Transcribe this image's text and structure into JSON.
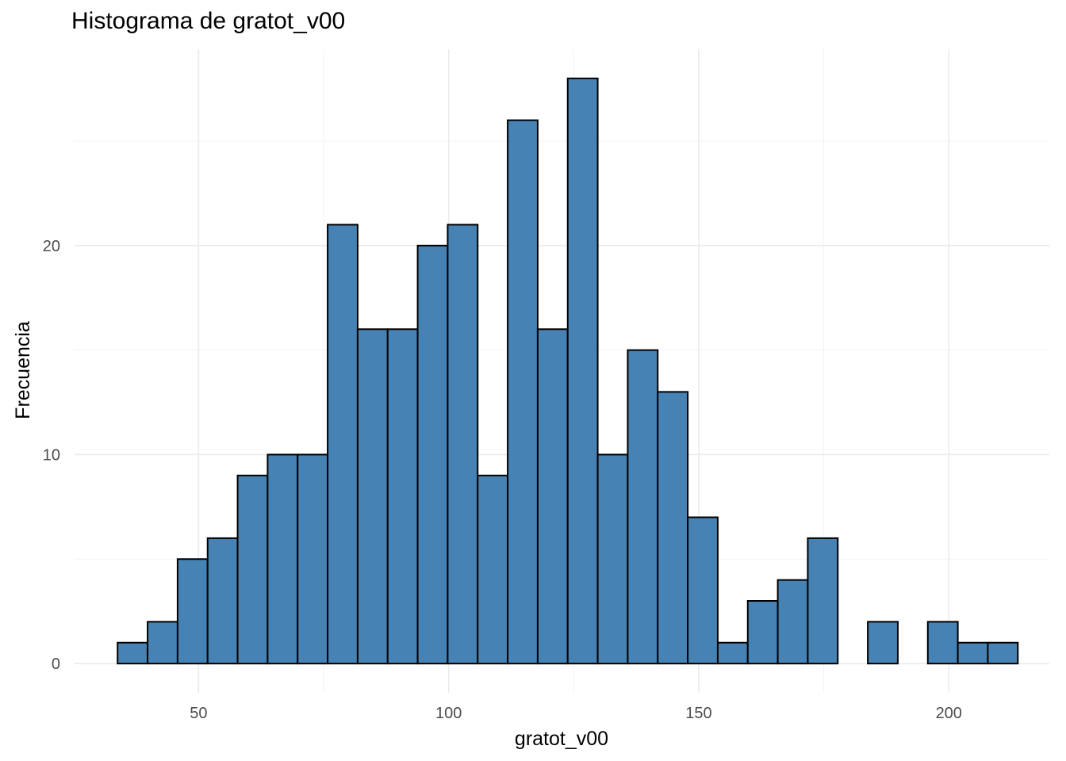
{
  "chart_data": {
    "type": "bar",
    "title": "Histograma de gratot_v00",
    "xlabel": "gratot_v00",
    "ylabel": "Frecuencia",
    "fill_color": "#4682b4",
    "edge_color": "#000000",
    "grid": true,
    "xlim": [
      25.2,
      220.1
    ],
    "ylim": [
      -1.4,
      29.4
    ],
    "x_ticks": [
      50,
      100,
      150,
      200
    ],
    "y_ticks": [
      0,
      10,
      20
    ],
    "bins": [
      {
        "x0": 33.8,
        "x1": 39.8,
        "count": 1
      },
      {
        "x0": 39.8,
        "x1": 45.8,
        "count": 2
      },
      {
        "x0": 45.8,
        "x1": 51.8,
        "count": 5
      },
      {
        "x0": 51.8,
        "x1": 57.8,
        "count": 6
      },
      {
        "x0": 57.8,
        "x1": 63.8,
        "count": 9
      },
      {
        "x0": 63.8,
        "x1": 69.8,
        "count": 10
      },
      {
        "x0": 69.8,
        "x1": 75.8,
        "count": 10
      },
      {
        "x0": 75.8,
        "x1": 81.8,
        "count": 21
      },
      {
        "x0": 81.8,
        "x1": 87.8,
        "count": 16
      },
      {
        "x0": 87.8,
        "x1": 93.8,
        "count": 16
      },
      {
        "x0": 93.8,
        "x1": 99.8,
        "count": 20
      },
      {
        "x0": 99.8,
        "x1": 105.8,
        "count": 21
      },
      {
        "x0": 105.8,
        "x1": 111.8,
        "count": 9
      },
      {
        "x0": 111.8,
        "x1": 117.8,
        "count": 26
      },
      {
        "x0": 117.8,
        "x1": 123.8,
        "count": 16
      },
      {
        "x0": 123.8,
        "x1": 129.8,
        "count": 28
      },
      {
        "x0": 129.8,
        "x1": 135.8,
        "count": 10
      },
      {
        "x0": 135.8,
        "x1": 141.8,
        "count": 15
      },
      {
        "x0": 141.8,
        "x1": 147.8,
        "count": 13
      },
      {
        "x0": 147.8,
        "x1": 153.8,
        "count": 7
      },
      {
        "x0": 153.8,
        "x1": 159.8,
        "count": 1
      },
      {
        "x0": 159.8,
        "x1": 165.8,
        "count": 3
      },
      {
        "x0": 165.8,
        "x1": 171.8,
        "count": 4
      },
      {
        "x0": 171.8,
        "x1": 177.8,
        "count": 6
      },
      {
        "x0": 177.8,
        "x1": 183.8,
        "count": 0
      },
      {
        "x0": 183.8,
        "x1": 189.8,
        "count": 2
      },
      {
        "x0": 189.8,
        "x1": 195.8,
        "count": 0
      },
      {
        "x0": 195.8,
        "x1": 201.8,
        "count": 2
      },
      {
        "x0": 201.8,
        "x1": 207.8,
        "count": 1
      },
      {
        "x0": 207.8,
        "x1": 213.8,
        "count": 1
      }
    ]
  }
}
